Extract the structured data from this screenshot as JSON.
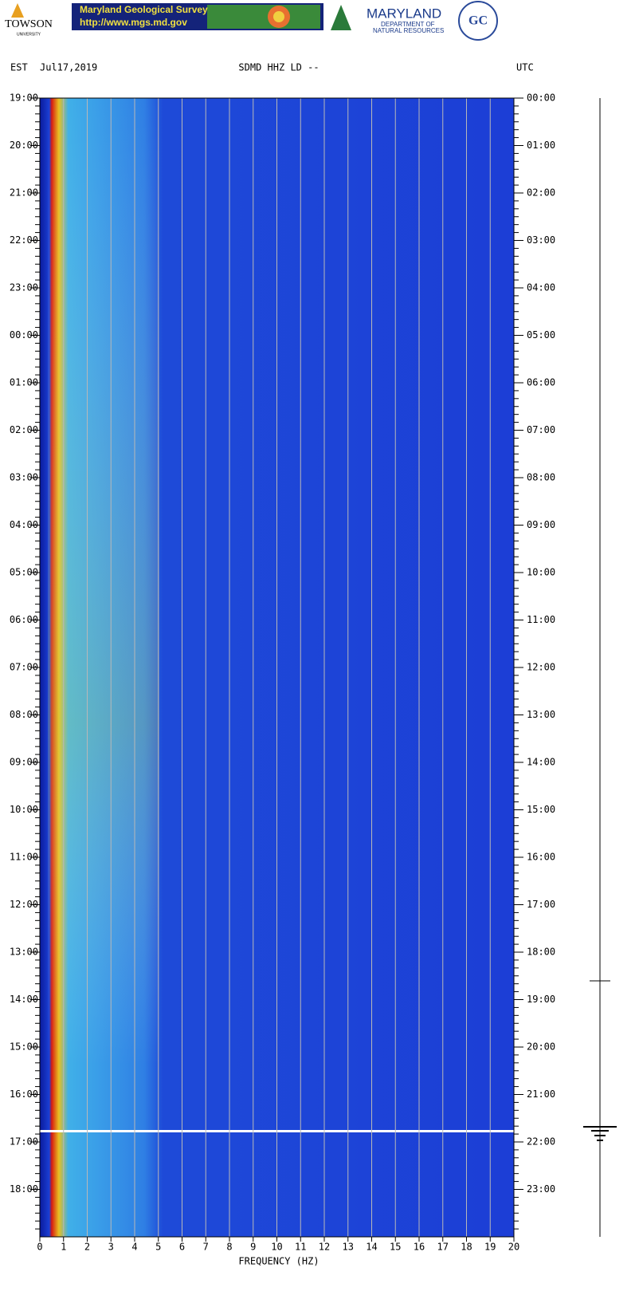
{
  "header": {
    "towson": "TOWSON",
    "towson_sub": "UNIVERSITY",
    "mgs_title": "Maryland Geological Survey",
    "mgs_url": "http://www.mgs.md.gov",
    "dnr_title": "MARYLAND",
    "dnr_line1": "DEPARTMENT OF",
    "dnr_line2": "NATURAL RESOURCES",
    "college": "GC"
  },
  "chart_data": {
    "type": "spectrogram",
    "left_zone": "EST",
    "date": "Jul17,2019",
    "title": "SDMD HHZ LD --",
    "right_zone": "UTC",
    "xlabel": "FREQUENCY (HZ)",
    "xlim": [
      0,
      20
    ],
    "xticks": [
      0,
      1,
      2,
      3,
      4,
      5,
      6,
      7,
      8,
      9,
      10,
      11,
      12,
      13,
      14,
      15,
      16,
      17,
      18,
      19,
      20
    ],
    "grid": true,
    "y_left_labels": [
      "19:00",
      "20:00",
      "21:00",
      "22:00",
      "23:00",
      "00:00",
      "01:00",
      "02:00",
      "03:00",
      "04:00",
      "05:00",
      "06:00",
      "07:00",
      "08:00",
      "09:00",
      "10:00",
      "11:00",
      "12:00",
      "13:00",
      "14:00",
      "15:00",
      "16:00",
      "17:00",
      "18:00"
    ],
    "y_right_labels": [
      "00:00",
      "01:00",
      "02:00",
      "03:00",
      "04:00",
      "05:00",
      "06:00",
      "07:00",
      "08:00",
      "09:00",
      "10:00",
      "11:00",
      "12:00",
      "13:00",
      "14:00",
      "15:00",
      "16:00",
      "17:00",
      "18:00",
      "19:00",
      "20:00",
      "21:00",
      "22:00",
      "23:00"
    ]
  }
}
